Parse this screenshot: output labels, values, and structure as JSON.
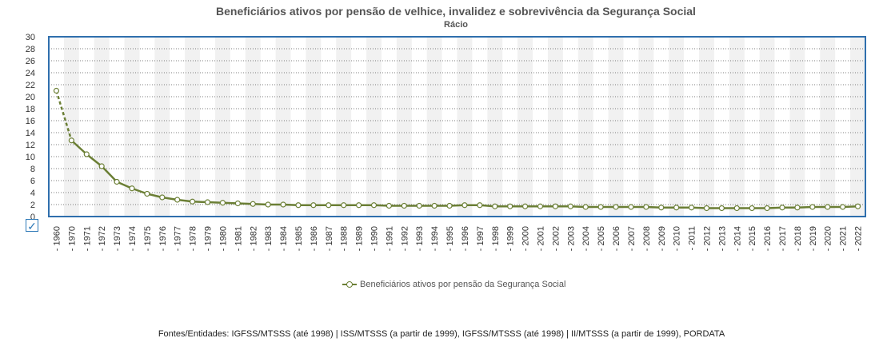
{
  "chart_data": {
    "type": "line",
    "title": "Beneficiários ativos por pensão de velhice, invalidez e sobrevivência da Segurança Social",
    "subtitle": "Rácio",
    "categories": [
      "1960",
      "1970",
      "1971",
      "1972",
      "1973",
      "1974",
      "1975",
      "1976",
      "1977",
      "1978",
      "1979",
      "1980",
      "1981",
      "1982",
      "1983",
      "1984",
      "1985",
      "1986",
      "1987",
      "1988",
      "1989",
      "1990",
      "1991",
      "1992",
      "1993",
      "1994",
      "1995",
      "1996",
      "1997",
      "1998",
      "1999",
      "2000",
      "2001",
      "2002",
      "2003",
      "2004",
      "2005",
      "2006",
      "2007",
      "2008",
      "2009",
      "2010",
      "2011",
      "2012",
      "2013",
      "2014",
      "2015",
      "2016",
      "2017",
      "2018",
      "2019",
      "2020",
      "2021",
      "2022"
    ],
    "series": [
      {
        "name": "Beneficiários ativos por pensão da Segurança Social",
        "color": "#6b7f35",
        "values": [
          21.0,
          12.7,
          10.4,
          8.4,
          5.8,
          4.7,
          3.8,
          3.2,
          2.8,
          2.5,
          2.4,
          2.3,
          2.2,
          2.1,
          2.0,
          2.0,
          1.9,
          1.9,
          1.9,
          1.9,
          1.9,
          1.9,
          1.8,
          1.8,
          1.8,
          1.8,
          1.8,
          1.9,
          1.9,
          1.7,
          1.7,
          1.7,
          1.7,
          1.7,
          1.7,
          1.6,
          1.6,
          1.6,
          1.6,
          1.6,
          1.5,
          1.5,
          1.5,
          1.4,
          1.4,
          1.4,
          1.4,
          1.4,
          1.5,
          1.5,
          1.6,
          1.6,
          1.6,
          1.7
        ]
      }
    ],
    "ylim": [
      0,
      30
    ],
    "ytick_step": 2,
    "grid": true,
    "legend_position": "bottom-center",
    "dashed_segments": [
      "1960-1970"
    ]
  },
  "ui": {
    "checkbox_mark": "✓",
    "source_text": "Fontes/Entidades: IGFSS/MTSSS (até 1998) | ISS/MTSSS (a partir de 1999), IGFSS/MTSSS (até 1998) | II/MTSSS (a partir de 1999), PORDATA"
  }
}
